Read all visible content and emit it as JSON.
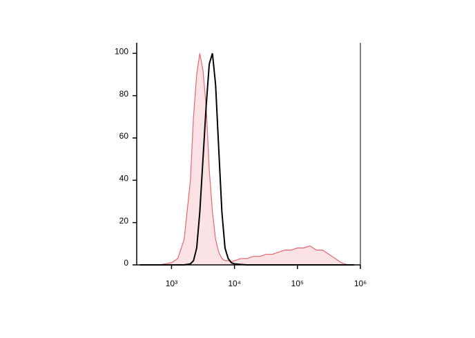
{
  "chart_data": {
    "type": "histogram-overlay",
    "x_scale": "log",
    "x": [
      316,
      398,
      501,
      631,
      794,
      1000,
      1259,
      1585,
      1995,
      2239,
      2512,
      2818,
      3162,
      3548,
      3981,
      4467,
      5012,
      5623,
      6310,
      7079,
      7943,
      8913,
      10000,
      12589,
      15849,
      19953,
      25119,
      31623,
      39811,
      50119,
      63096,
      79433,
      100000,
      125893,
      158489,
      199526,
      251189,
      316228,
      398107,
      501187,
      630957,
      794328
    ],
    "series": [
      {
        "color": "#e8636f",
        "fill": "#fbe3e5",
        "values": [
          0,
          0,
          0,
          0,
          0.5,
          1,
          3,
          12,
          40,
          70,
          90,
          100,
          92,
          75,
          45,
          25,
          12,
          6,
          3,
          2,
          2,
          1.5,
          2,
          3,
          3,
          4,
          4,
          5,
          5,
          6,
          7,
          7,
          8,
          8,
          9,
          7,
          7,
          5,
          3,
          1,
          0,
          0
        ]
      },
      {
        "color": "#000000",
        "values": [
          0,
          0,
          0,
          0,
          0,
          0,
          0,
          0,
          0.5,
          2,
          8,
          25,
          50,
          75,
          95,
          100,
          85,
          55,
          25,
          8,
          3,
          1,
          0.5,
          0.2,
          0,
          0,
          0,
          0,
          0,
          0,
          0,
          0,
          0,
          0,
          0,
          0,
          0,
          0,
          0,
          0,
          0,
          0
        ]
      }
    ],
    "xlim": [
      280,
      1000000
    ],
    "ylim": [
      0,
      105
    ],
    "xticks": [
      {
        "value": 1000,
        "label": "10³"
      },
      {
        "value": 10000,
        "label": "10⁴"
      },
      {
        "value": 100000,
        "label": "10⁵"
      },
      {
        "value": 1000000,
        "label": "10⁶"
      }
    ],
    "yticks": [
      0,
      20,
      40,
      60,
      80,
      100
    ]
  }
}
